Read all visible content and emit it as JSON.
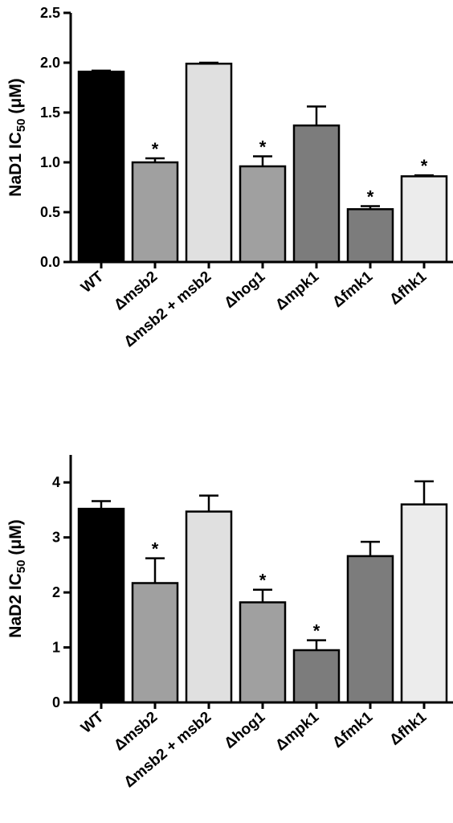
{
  "chart_data": [
    {
      "type": "bar",
      "ylabel_prefix": "NaD1 IC",
      "ylabel_sub": "50",
      "ylabel_suffix": " (μM)",
      "ylim": [
        0,
        2.5
      ],
      "yticks": [
        0.0,
        0.5,
        1.0,
        1.5,
        2.0,
        2.5
      ],
      "ytick_labels": [
        "0.0",
        "0.5",
        "1.0",
        "1.5",
        "2.0",
        "2.5"
      ],
      "categories": [
        "WT",
        "Δmsb2",
        "Δmsb2 + msb2",
        "Δhog1",
        "Δmpk1",
        "Δfmk1",
        "Δfhk1"
      ],
      "values": [
        1.91,
        1.0,
        1.99,
        0.96,
        1.37,
        0.53,
        0.86
      ],
      "errors": [
        0.01,
        0.04,
        0.01,
        0.1,
        0.19,
        0.03,
        0.01
      ],
      "significant": [
        false,
        true,
        false,
        true,
        false,
        true,
        true
      ],
      "sig_marker": "*",
      "bar_colors": [
        "#000000",
        "#a0a0a0",
        "#e0e0e0",
        "#a0a0a0",
        "#7c7c7c",
        "#7c7c7c",
        "#ececec"
      ]
    },
    {
      "type": "bar",
      "ylabel_prefix": "NaD2 IC",
      "ylabel_sub": "50",
      "ylabel_suffix": " (μM)",
      "ylim": [
        0,
        4.5
      ],
      "yticks": [
        0,
        1,
        2,
        3,
        4
      ],
      "ytick_labels": [
        "0",
        "1",
        "2",
        "3",
        "4"
      ],
      "categories": [
        "WT",
        "Δmsb2",
        "Δmsb2 + msb2",
        "Δhog1",
        "Δmpk1",
        "Δfmk1",
        "Δfhk1"
      ],
      "values": [
        3.52,
        2.17,
        3.47,
        1.82,
        0.95,
        2.66,
        3.6
      ],
      "errors": [
        0.14,
        0.45,
        0.29,
        0.23,
        0.18,
        0.26,
        0.42
      ],
      "significant": [
        false,
        true,
        false,
        true,
        true,
        false,
        false
      ],
      "sig_marker": "*",
      "bar_colors": [
        "#000000",
        "#a0a0a0",
        "#e0e0e0",
        "#a0a0a0",
        "#7c7c7c",
        "#7c7c7c",
        "#ececec"
      ]
    }
  ]
}
